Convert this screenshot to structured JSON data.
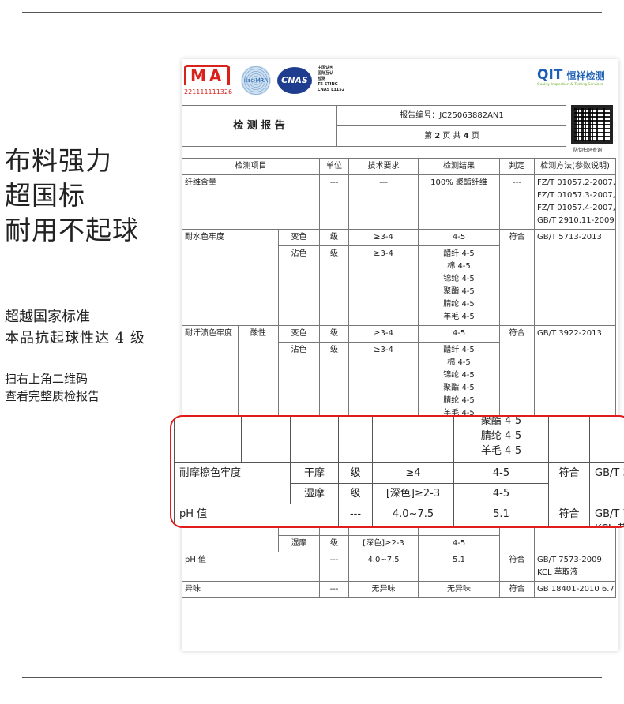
{
  "promo": {
    "headline": [
      "布料强力",
      "超国标",
      "耐用不起球"
    ],
    "subline": [
      "超越国家标准",
      "本品抗起球性达 4 级"
    ],
    "hint": [
      "扫右上角二维码",
      "查看完整质检报告"
    ]
  },
  "report": {
    "logos": {
      "cma_text": "MA",
      "cma_number": "221111111326",
      "ilac": "ilac-MRA",
      "cnas": "CNAS",
      "cnas_small": [
        "中国认可",
        "国际互认",
        "检测",
        "TE STING",
        "CNAS L3152"
      ],
      "qit": "QIT",
      "qit_cn": "恒祥检测",
      "qit_tagline": "Quality Inspection & Testing Services"
    },
    "title": "检 测 报 告",
    "report_no": "报告编号：JC25063882AN1",
    "page": {
      "prefix": "第",
      "current": "2",
      "mid": "页 共",
      "total": "4",
      "suffix": "页"
    },
    "qr_label": "防伪扫码查询",
    "headers": [
      "检测项目",
      "单位",
      "技术要求",
      "检测结果",
      "判定",
      "检测方法(参数说明)"
    ],
    "fiber": {
      "item": "纤维含量",
      "unit": "---",
      "req": "---",
      "result": "100% 聚酯纤维",
      "verdict": "---",
      "methods": [
        "FZ/T 01057.2-2007,",
        "FZ/T 01057.3-2007,",
        "FZ/T 01057.4-2007,",
        "GB/T 2910.11-2009"
      ]
    },
    "water": {
      "item": "耐水色牢度",
      "change": "变色",
      "stain": "沾色",
      "unit": "级",
      "req": "≥3-4",
      "change_result": "4-5",
      "stain_results": [
        "醋纤 4-5",
        "棉 4-5",
        "锦纶 4-5",
        "聚酯 4-5",
        "腈纶 4-5",
        "羊毛 4-5"
      ],
      "verdict": "符合",
      "method": "GB/T 5713-2013"
    },
    "sweat": {
      "item": "耐汗渍色牢度",
      "sub": "酸性",
      "change": "变色",
      "stain": "沾色",
      "unit": "级",
      "req": "≥3-4",
      "change_result": "4-5",
      "stain_results": [
        "醋纤 4-5",
        "棉 4-5",
        "锦纶 4-5",
        "聚酯 4-5",
        "腈纶 4-5",
        "羊毛 4-5"
      ],
      "verdict": "符合",
      "method": "GB/T 3922-2013"
    },
    "rub": {
      "item": "耐摩擦色牢度",
      "dry": "干摩",
      "wet": "湿摩",
      "unit": "级",
      "dry_req": "≥4",
      "wet_req": "[深色]≥2-3",
      "dry_result": "4-5",
      "wet_result": "4-5",
      "verdict": "符合",
      "method": "GB/T 3"
    },
    "ph": {
      "item": "pH 值",
      "unit": "---",
      "req": "4.0~7.5",
      "result": "5.1",
      "verdict": "符合",
      "method": [
        "GB/T 7573-2009",
        "KCL 萃取液"
      ]
    },
    "odor": {
      "item": "异味",
      "unit": "---",
      "req": "无异味",
      "result": "无异味",
      "verdict": "符合",
      "method": "GB 18401-2010 6.7"
    }
  },
  "magnified": {
    "stain_results": [
      "聚酯 4-5",
      "腈纶 4-5",
      "羊毛 4-5"
    ],
    "ph_method": [
      "GB/T 7",
      "KCL 萃"
    ]
  },
  "colors": {
    "highlight": "#e21b1b",
    "cma": "#d9221c",
    "cnas": "#1e3d8f",
    "qit": "#1b5fb4"
  }
}
